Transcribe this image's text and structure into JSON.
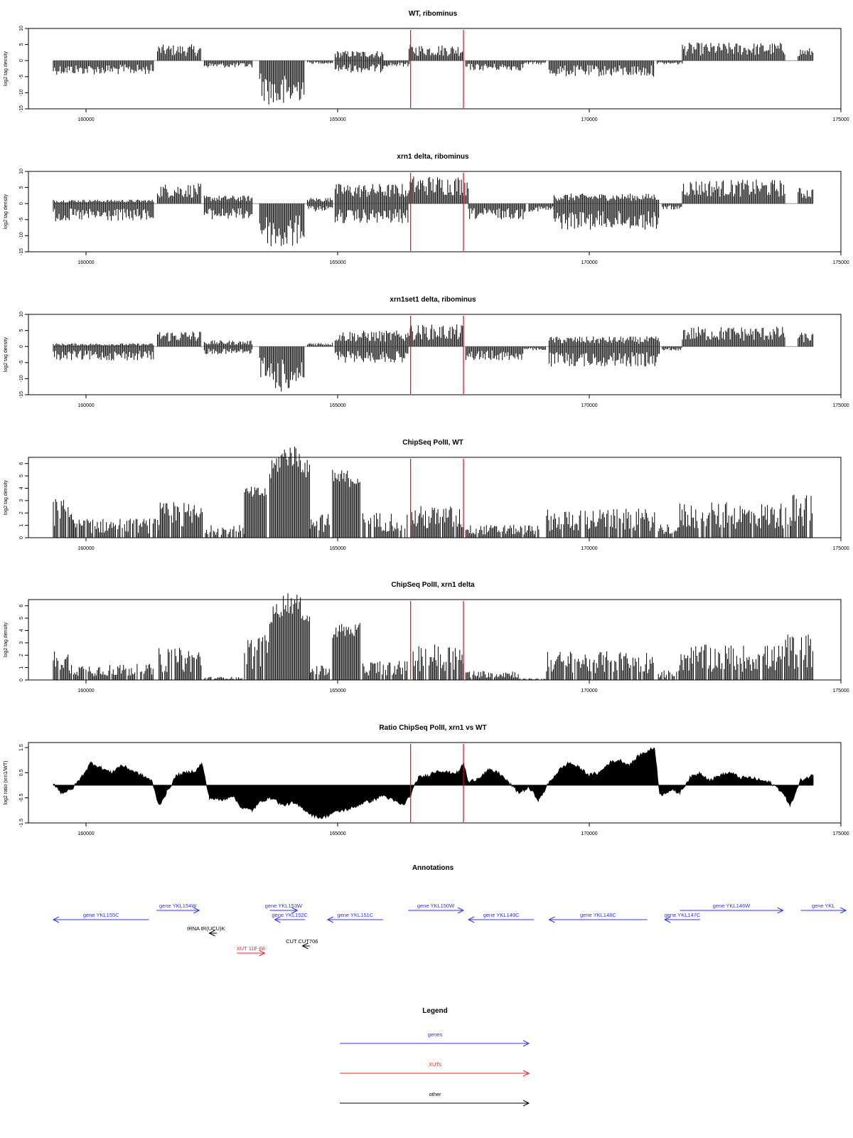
{
  "chart_data": [
    {
      "type": "bar",
      "title": "WT, ribominus",
      "ylabel": "log2 tag density",
      "xlim": [
        158800,
        175000
      ],
      "ylim": [
        -15,
        10
      ],
      "yticks": [
        "-15",
        "-10",
        "-5",
        "0",
        "5",
        "10"
      ],
      "xticks": [
        "160000",
        "165000",
        "170000",
        "175000"
      ],
      "markers": [
        166450,
        167500
      ],
      "segments": [
        {
          "x0": 159350,
          "x1": 161350,
          "y": -3.5
        },
        {
          "x0": 161420,
          "x1": 162280,
          "y": 4.0
        },
        {
          "x0": 162350,
          "x1": 163300,
          "y": -1.8
        },
        {
          "x0": 163450,
          "x1": 164350,
          "y": -12.0
        },
        {
          "x0": 164400,
          "x1": 164900,
          "y": -0.8
        },
        {
          "x0": 164950,
          "x1": 165900,
          "y": 2.5
        },
        {
          "x0": 164950,
          "x1": 165900,
          "y": -3.0
        },
        {
          "x0": 165900,
          "x1": 166420,
          "y": -1.5
        },
        {
          "x0": 166420,
          "x1": 167500,
          "y": 4.0
        },
        {
          "x0": 167550,
          "x1": 168700,
          "y": -2.5
        },
        {
          "x0": 168700,
          "x1": 169150,
          "y": -1.0
        },
        {
          "x0": 169200,
          "x1": 171300,
          "y": -4.0
        },
        {
          "x0": 171350,
          "x1": 171850,
          "y": -1.0
        },
        {
          "x0": 171850,
          "x1": 173900,
          "y": 4.5
        },
        {
          "x0": 174150,
          "x1": 174450,
          "y": 3.2
        }
      ]
    },
    {
      "type": "bar",
      "title": "xrn1 delta, ribominus",
      "ylabel": "log2 tag density",
      "xlim": [
        158800,
        175000
      ],
      "ylim": [
        -15,
        10
      ],
      "yticks": [
        "-15",
        "-10",
        "-5",
        "0",
        "5",
        "10"
      ],
      "xticks": [
        "160000",
        "165000",
        "170000",
        "175000"
      ],
      "markers": [
        166450,
        167500
      ],
      "segments": [
        {
          "x0": 159350,
          "x1": 161350,
          "y": -4.5
        },
        {
          "x0": 159350,
          "x1": 161350,
          "y": 1.0
        },
        {
          "x0": 161420,
          "x1": 162300,
          "y": 5.0
        },
        {
          "x0": 162350,
          "x1": 163300,
          "y": 2.0
        },
        {
          "x0": 162350,
          "x1": 163300,
          "y": -4.0
        },
        {
          "x0": 163450,
          "x1": 164350,
          "y": -11.5
        },
        {
          "x0": 164400,
          "x1": 164900,
          "y": 1.5
        },
        {
          "x0": 164400,
          "x1": 164900,
          "y": -2.0
        },
        {
          "x0": 164950,
          "x1": 166400,
          "y": 5.0
        },
        {
          "x0": 164950,
          "x1": 166400,
          "y": -5.0
        },
        {
          "x0": 166420,
          "x1": 167600,
          "y": 7.0
        },
        {
          "x0": 167600,
          "x1": 168750,
          "y": -4.0
        },
        {
          "x0": 168800,
          "x1": 169300,
          "y": -2.0
        },
        {
          "x0": 169300,
          "x1": 171400,
          "y": -6.5
        },
        {
          "x0": 169300,
          "x1": 171400,
          "y": 2.5
        },
        {
          "x0": 171450,
          "x1": 171850,
          "y": -1.5
        },
        {
          "x0": 171850,
          "x1": 173900,
          "y": 6.0
        },
        {
          "x0": 174150,
          "x1": 174450,
          "y": 4.0
        }
      ]
    },
    {
      "type": "bar",
      "title": "xrn1set1 delta, ribominus",
      "ylabel": "log2 tag density",
      "xlim": [
        158800,
        175000
      ],
      "ylim": [
        -15,
        10
      ],
      "yticks": [
        "-15",
        "-10",
        "-5",
        "0",
        "5",
        "10"
      ],
      "xticks": [
        "160000",
        "165000",
        "170000",
        "175000"
      ],
      "markers": [
        166450,
        167500
      ],
      "segments": [
        {
          "x0": 159350,
          "x1": 161350,
          "y": -3.5
        },
        {
          "x0": 159350,
          "x1": 161350,
          "y": 0.8
        },
        {
          "x0": 161420,
          "x1": 162280,
          "y": 4.0
        },
        {
          "x0": 162350,
          "x1": 163300,
          "y": -2.0
        },
        {
          "x0": 162350,
          "x1": 163300,
          "y": 1.5
        },
        {
          "x0": 163450,
          "x1": 164350,
          "y": -11.0
        },
        {
          "x0": 164400,
          "x1": 164900,
          "y": 1.0
        },
        {
          "x0": 164950,
          "x1": 166400,
          "y": 4.0
        },
        {
          "x0": 164950,
          "x1": 166400,
          "y": -4.0
        },
        {
          "x0": 166420,
          "x1": 167500,
          "y": 5.5
        },
        {
          "x0": 167550,
          "x1": 168700,
          "y": -3.5
        },
        {
          "x0": 168700,
          "x1": 169150,
          "y": -1.0
        },
        {
          "x0": 169200,
          "x1": 171400,
          "y": -5.0
        },
        {
          "x0": 169200,
          "x1": 171400,
          "y": 2.5
        },
        {
          "x0": 171450,
          "x1": 171850,
          "y": -1.0
        },
        {
          "x0": 171850,
          "x1": 173900,
          "y": 5.0
        },
        {
          "x0": 174150,
          "x1": 174450,
          "y": 3.5
        }
      ]
    },
    {
      "type": "bar",
      "title": "ChipSeq PolII, WT",
      "ylabel": "log2 tag density",
      "xlim": [
        158800,
        175000
      ],
      "ylim": [
        0,
        6.5
      ],
      "yticks": [
        "0",
        "1",
        "2",
        "3",
        "4",
        "5",
        "6"
      ],
      "xticks": [
        "160000",
        "165000",
        "170000",
        "175000"
      ],
      "markers": [
        166450,
        167500
      ],
      "segments": [
        {
          "x0": 159350,
          "x1": 159750,
          "y": 2.5
        },
        {
          "x0": 159750,
          "x1": 161450,
          "y": 1.2
        },
        {
          "x0": 161450,
          "x1": 162350,
          "y": 2.2
        },
        {
          "x0": 162350,
          "x1": 163150,
          "y": 0.8
        },
        {
          "x0": 163150,
          "x1": 163600,
          "y": 3.6
        },
        {
          "x0": 163650,
          "x1": 164450,
          "y": 6.1
        },
        {
          "x0": 164450,
          "x1": 164850,
          "y": 1.5
        },
        {
          "x0": 164900,
          "x1": 165450,
          "y": 4.8
        },
        {
          "x0": 165500,
          "x1": 166400,
          "y": 1.6
        },
        {
          "x0": 166450,
          "x1": 167500,
          "y": 2.0
        },
        {
          "x0": 167550,
          "x1": 169000,
          "y": 0.8
        },
        {
          "x0": 169150,
          "x1": 171300,
          "y": 1.8
        },
        {
          "x0": 171350,
          "x1": 171800,
          "y": 0.9
        },
        {
          "x0": 171800,
          "x1": 174000,
          "y": 2.2
        },
        {
          "x0": 174000,
          "x1": 174450,
          "y": 2.8
        }
      ]
    },
    {
      "type": "bar",
      "title": "ChipSeq PolII, xrn1 delta",
      "ylabel": "log2 tag density",
      "xlim": [
        158800,
        175000
      ],
      "ylim": [
        0,
        6.5
      ],
      "yticks": [
        "0",
        "1",
        "2",
        "3",
        "4",
        "5",
        "6"
      ],
      "xticks": [
        "160000",
        "165000",
        "170000",
        "175000"
      ],
      "markers": [
        166450,
        167500
      ],
      "segments": [
        {
          "x0": 159350,
          "x1": 159750,
          "y": 1.8
        },
        {
          "x0": 159750,
          "x1": 161350,
          "y": 1.0
        },
        {
          "x0": 161450,
          "x1": 162300,
          "y": 2.0
        },
        {
          "x0": 162350,
          "x1": 163100,
          "y": 0.2
        },
        {
          "x0": 163150,
          "x1": 163650,
          "y": 2.8
        },
        {
          "x0": 163650,
          "x1": 164450,
          "y": 5.7
        },
        {
          "x0": 164450,
          "x1": 164850,
          "y": 0.9
        },
        {
          "x0": 164900,
          "x1": 165450,
          "y": 4.0
        },
        {
          "x0": 165500,
          "x1": 166400,
          "y": 1.2
        },
        {
          "x0": 166500,
          "x1": 167500,
          "y": 2.3
        },
        {
          "x0": 167550,
          "x1": 168600,
          "y": 0.6
        },
        {
          "x0": 168600,
          "x1": 169150,
          "y": 0.1
        },
        {
          "x0": 169150,
          "x1": 171300,
          "y": 1.8
        },
        {
          "x0": 171350,
          "x1": 171800,
          "y": 0.6
        },
        {
          "x0": 171800,
          "x1": 173900,
          "y": 2.2
        },
        {
          "x0": 173900,
          "x1": 174450,
          "y": 2.9
        }
      ]
    },
    {
      "type": "area",
      "title": "Ratio ChipSeq PolII, xrn1 vs WT",
      "ylabel": "log2 ratio (xrn1/WT)",
      "xlim": [
        158800,
        175000
      ],
      "ylim": [
        -1.5,
        1.7
      ],
      "yticks": [
        "-1.5",
        "-0.5",
        "0.5",
        "1.5"
      ],
      "xticks": [
        "160000",
        "165000",
        "170000",
        "175000"
      ],
      "markers": [
        166450,
        167500
      ],
      "x": [
        159350,
        159500,
        159700,
        159900,
        160100,
        160300,
        160500,
        160700,
        160900,
        161100,
        161300,
        161450,
        161600,
        161800,
        162000,
        162200,
        162300,
        162450,
        162700,
        162900,
        163100,
        163300,
        163500,
        163700,
        163900,
        164100,
        164300,
        164500,
        164700,
        164900,
        165100,
        165300,
        165500,
        165700,
        165900,
        166100,
        166300,
        166450,
        166600,
        166800,
        167000,
        167200,
        167400,
        167500,
        167600,
        167800,
        168000,
        168200,
        168400,
        168600,
        168800,
        169000,
        169200,
        169400,
        169600,
        169800,
        170000,
        170200,
        170400,
        170600,
        170800,
        171000,
        171200,
        171300,
        171400,
        171600,
        171800,
        172000,
        172200,
        172400,
        172600,
        172800,
        173000,
        173200,
        173400,
        173600,
        173800,
        174000,
        174200,
        174450
      ],
      "y": [
        0.1,
        -0.3,
        -0.2,
        0.3,
        0.9,
        0.7,
        0.5,
        0.8,
        0.6,
        0.4,
        0.2,
        -0.8,
        -0.3,
        0.4,
        0.5,
        0.6,
        0.9,
        -0.5,
        -0.6,
        -0.4,
        -0.9,
        -1.0,
        -0.6,
        -0.5,
        -0.8,
        -0.7,
        -0.9,
        -1.2,
        -1.3,
        -1.1,
        -1.0,
        -0.9,
        -0.7,
        -0.6,
        -0.4,
        -0.6,
        -0.8,
        -0.4,
        0.3,
        0.4,
        0.6,
        0.5,
        0.5,
        0.9,
        0.1,
        0.3,
        0.6,
        0.5,
        0.1,
        -0.3,
        -0.1,
        -0.6,
        0.1,
        0.6,
        0.9,
        0.7,
        0.4,
        0.5,
        0.9,
        1.0,
        0.8,
        1.2,
        1.4,
        1.5,
        -0.4,
        -0.2,
        -0.3,
        0.3,
        0.5,
        0.2,
        0.4,
        0.5,
        0.3,
        0.3,
        0.2,
        0.1,
        -0.2,
        -0.8,
        0.2,
        0.4
      ]
    }
  ],
  "annotations": {
    "title": "Annotations",
    "features": [
      {
        "label": "gene YKL155C",
        "type": "genes",
        "strand": "-",
        "start": 159350,
        "end": 161250,
        "row": 2
      },
      {
        "label": "gene YKL154W",
        "type": "genes",
        "strand": "+",
        "start": 161400,
        "end": 162250,
        "row": 1
      },
      {
        "label": "gene YKL153W",
        "type": "genes",
        "strand": "+",
        "start": 163650,
        "end": 164200,
        "row": 1
      },
      {
        "label": "gene YKL152C",
        "type": "genes",
        "strand": "-",
        "start": 163750,
        "end": 164350,
        "row": 2
      },
      {
        "label": "gene YKL151C",
        "type": "genes",
        "strand": "-",
        "start": 164800,
        "end": 165900,
        "row": 2
      },
      {
        "label": "gene YKL150W",
        "type": "genes",
        "strand": "+",
        "start": 166400,
        "end": 167500,
        "row": 1
      },
      {
        "label": "gene YKL149C",
        "type": "genes",
        "strand": "-",
        "start": 167600,
        "end": 168900,
        "row": 2
      },
      {
        "label": "gene YKL148C",
        "type": "genes",
        "strand": "-",
        "start": 169200,
        "end": 171150,
        "row": 2
      },
      {
        "label": "gene YKL147C",
        "type": "genes",
        "strand": "-",
        "start": 171500,
        "end": 172200,
        "row": 2
      },
      {
        "label": "gene YKL146W",
        "type": "genes",
        "strand": "+",
        "start": 171800,
        "end": 173850,
        "row": 1
      },
      {
        "label": "gene YKL",
        "type": "genes",
        "strand": "+",
        "start": 174200,
        "end": 175100,
        "row": 1
      },
      {
        "label": "tRNA tR(UCU)K",
        "type": "other",
        "strand": "-",
        "start": 162450,
        "end": 162600,
        "row": 3
      },
      {
        "label": "CUT CUT706",
        "type": "other",
        "strand": "-",
        "start": 164300,
        "end": 164450,
        "row": 5
      },
      {
        "label": "XUT 11F-68",
        "type": "XUTs",
        "strand": "+",
        "start": 163000,
        "end": 163550,
        "row": 6
      }
    ]
  },
  "legend": {
    "title": "Legend",
    "entries": [
      {
        "label": "genes",
        "color": "#3030ff"
      },
      {
        "label": "XUTs",
        "color": "#ff2020"
      },
      {
        "label": "other",
        "color": "#000000"
      }
    ]
  },
  "colors": {
    "marker": "#ff0000",
    "bars": "#000000",
    "genes": "#3030ff",
    "XUTs": "#ff2020",
    "other": "#000000"
  }
}
